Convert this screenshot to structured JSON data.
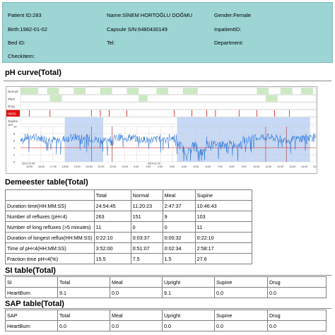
{
  "patient": {
    "patient_id": "Patient ID:283",
    "name": "Name:SİNEM HORTOĞLU DOĞMU",
    "gender": "Gender:Female",
    "birth": "Birth:1982-01-02",
    "capsule": "Capsule S/N:6480430149",
    "inpatient": "InpatientID:",
    "bed": "Bed ID:",
    "tel": "Tel:",
    "department": "Department:",
    "checkitem": "CheckItem:"
  },
  "ph_title": "pH curve(Total)",
  "chart": {
    "event_rows": [
      "Normal",
      "Meal",
      "Drug",
      "HB/SI",
      "Supine"
    ],
    "ph_label": "pH",
    "y_ticks": [
      "10",
      "8",
      "6",
      "4",
      "2",
      "0"
    ],
    "x_ticks": [
      "15:00",
      "16:00",
      "17:00",
      "18:00",
      "19:00",
      "20:00",
      "21:00",
      "22:00",
      "23:00",
      "0:00",
      "1:00",
      "2:00",
      "3:00",
      "4:00",
      "5:00",
      "6:00",
      "7:00",
      "8:00",
      "9:00",
      "10:00",
      "11:00",
      "12:00",
      "13:00",
      "14:00",
      "15:00"
    ],
    "date_1": "2014-12-09",
    "date_2": "2014-12-10",
    "threshold_ph": 4,
    "colors": {
      "trace": "#1e6fd9",
      "supine_shade": "#b9cff3",
      "event_mark": "#e01010",
      "event_fill": "#cde8c4"
    }
  },
  "demeester": {
    "title": "Demeester table(Total)",
    "headers": [
      "",
      "Total",
      "Normal",
      "Meal",
      "Supine"
    ],
    "rows": [
      [
        "Duration time(HH:MM:SS)",
        "24:54:45",
        "11:20:23",
        "2:47:37",
        "10:46:43"
      ],
      [
        "Number of refluxes (pH<4)",
        "263",
        "151",
        "9",
        "103"
      ],
      [
        "Number of long refluxes (>5 minutes)",
        "11",
        "0",
        "0",
        "11"
      ],
      [
        "Duration of longest reflux(HH:MM:SS)",
        "0:22:10",
        "0:03:37",
        "0:00:32",
        "0:22:10"
      ],
      [
        "Time of pH<4(HH:MM:SS)",
        "3:52:00",
        "0:51:07",
        "0:02:34",
        "2:58:17"
      ],
      [
        "Fraction time pH<4(%)",
        "15.5",
        "7.5",
        "1.5",
        "27.6"
      ]
    ]
  },
  "si": {
    "title": "SI table(Total)",
    "headers": [
      "SI",
      "Total",
      "Meal",
      "Upright",
      "Supine",
      "Drug"
    ],
    "rows": [
      [
        "HeartBurn",
        "9.1",
        "0.0",
        "9.1",
        "0.0",
        "0.0"
      ]
    ]
  },
  "sap": {
    "title": "SAP table(Total)",
    "headers": [
      "SAP",
      "Total",
      "Meal",
      "Upright",
      "Supine",
      "Drug"
    ],
    "rows": [
      [
        "HeartBurn",
        "0.0",
        "0.0",
        "0.0",
        "0.0",
        "0.0"
      ]
    ]
  }
}
